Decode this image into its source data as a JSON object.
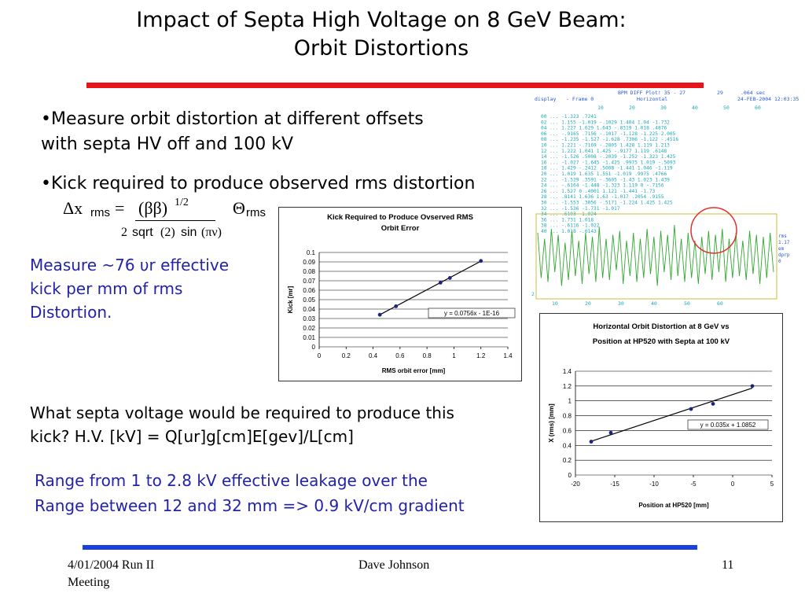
{
  "title": {
    "line1": "Impact of Septa High Voltage on 8 GeV Beam:",
    "line2": "Orbit Distortions"
  },
  "bullets": {
    "b1_line1": "•Measure orbit distortion at different offsets",
    "b1_line2": "with septa HV off and 100 kV",
    "b2": "•Kick required to produce observed rms distortion"
  },
  "formula": {
    "delta_x": "Δx",
    "rms_sub": "rms",
    "equals": "=",
    "beta": "(ββ)",
    "exponent": "1/2",
    "theta": "Θ",
    "theta_sub": "rms",
    "two": "2",
    "sqrt": "sqrt",
    "two_paren": "(2)",
    "sin": "sin",
    "pi_nu": "(πν)"
  },
  "measure_text": {
    "line1": "Measure ~76 υr effective",
    "line2": "kick per mm of rms",
    "line3": "Distortion."
  },
  "question": {
    "line1": "What septa voltage would be required to produce this",
    "line2": "kick?  H.V. [kV]  = Q[ur]g[cm]E[gev]/L[cm]"
  },
  "range_text": {
    "line1": "Range from 1 to 2.8 kV effective leakage over the",
    "line2": "Range between 12 and 32 mm => 0.9 kV/cm gradient"
  },
  "footer": {
    "date": "4/01/2004   Run II",
    "meeting": "Meeting",
    "author": "Dave Johnson",
    "page": "11"
  },
  "bpm_panel": {
    "header_title": "BPM DIFF Plot!  35 - 27",
    "header_num": "29",
    "header_time": ".064  sec",
    "display_label": "display",
    "frame_label": "- Frame 0",
    "horizontal_label": "Horizontal",
    "date": "24-FEB-2004 12:03:35",
    "top_ticks": [
      "10",
      "20",
      "30",
      "40",
      "50",
      "60"
    ],
    "bottom_ticks": [
      "10",
      "20",
      "30",
      "40",
      "50",
      "60"
    ],
    "right_labels": [
      "rms",
      "1.17",
      "em",
      "dprp",
      "0"
    ],
    "left_marker": "2",
    "table_rows": [
      "00  ...     -1.323                              .7241",
      "02  ...     1.155    -1.019   -.1029   1.404    1.04    -1.732",
      "04  ...     1.227    1.629    1.643    -.8319   1.018   .4876",
      "06  ...     -.9165   .7156    -.1017   -1.128   -1.225  2.005",
      "08  ...     -1.235   -1.527   -1.628   .7306    -1.122  -.4516",
      "10  ...     1.221    -.7169   -.2805   1.428    1.119   1.213",
      "12  ...     1.222    1.041    1.425    -.9177   1.119   .6148",
      "14  ...     -1.526   .5008    -.2039   -1.252   -1.323  1.425",
      "16  ...     -1.027   -1.645   -1.425   .9975    1.019   -.5093",
      "18  ...     1.429    -.2412   .5008    -1.441   1.046   -1.119",
      "20  ...     1.019    1.635    1.551    -1.019   .9975   .4766",
      "22  ...     -1.529   .3591    -.3605   -1.43    1.023   1.439",
      "24  ...     -.6164   -1.448   -1.323   1.119    0       -.7156",
      "26  ...     1.527    0        .4001    1.121    -1.441  -1.73",
      "28  ...     .8141    1.636    1.63     -1.017   .2054   .9155",
      "30  ...     -1.553   .3056    -.5171   -1.224   1.425   1.425",
      "32  ...                       -1.536   -1.731            -1.017",
      "34  ...                                .6103            -1.024",
      "36  ...                                1.731            1.018",
      "38  ...                                -.6116           -1.022",
      "40  ...                                1.018            -.0143"
    ]
  },
  "chart_data": [
    {
      "type": "scatter",
      "title": "Kick Required to Produce Ovserved RMS Orbit Error",
      "title_line1": "Kick Required to Produce Ovserved RMS",
      "title_line2": "Orbit Error",
      "xlabel": "RMS orbit error [mm]",
      "ylabel": "Kick [mr]",
      "xlim": [
        0,
        1.4
      ],
      "ylim": [
        0,
        0.1
      ],
      "x_ticks": [
        "0",
        "0.2",
        "0.4",
        "0.6",
        "0.8",
        "1",
        "1.2",
        "1.4"
      ],
      "y_ticks": [
        "0",
        "0.01",
        "0.02",
        "0.03",
        "0.04",
        "0.05",
        "0.06",
        "0.07",
        "0.08",
        "0.09",
        "0.1"
      ],
      "x": [
        0.45,
        0.57,
        0.9,
        0.97,
        1.2
      ],
      "y": [
        0.034,
        0.043,
        0.068,
        0.073,
        0.091
      ],
      "trendline": {
        "slope": 0.0756,
        "intercept": -1e-16
      },
      "equation_label": "y = 0.0756x - 1E-16",
      "grid": true,
      "marker_color": "#1a237e"
    },
    {
      "type": "scatter",
      "title": "Horizontal Orbit Distortion at 8 GeV vs Position at HP520 with Septa at 100 kV",
      "title_line1": "Horizontal Orbit Distortion at 8 GeV vs",
      "title_line2": "Position at HP520 with Septa at 100 kV",
      "xlabel": "Position at HP520 [mm]",
      "ylabel": "X (rms) [mm]",
      "xlim": [
        -20,
        5
      ],
      "ylim": [
        0,
        1.4
      ],
      "x_ticks": [
        "-20",
        "-15",
        "-10",
        "-5",
        "0",
        "5"
      ],
      "y_ticks": [
        "0",
        "0.2",
        "0.4",
        "0.6",
        "0.8",
        "1",
        "1.2",
        "1.4"
      ],
      "x": [
        -18,
        -15.5,
        -5.3,
        -2.5,
        2.5
      ],
      "y": [
        0.45,
        0.57,
        0.89,
        0.96,
        1.2
      ],
      "trendline": {
        "slope": 0.035,
        "intercept": 1.0852
      },
      "equation_label": "y = 0.035x + 1.0852",
      "grid": true,
      "marker_color": "#1a237e"
    },
    {
      "type": "line",
      "name": "bpm_difference_waveform",
      "xlim": [
        0,
        70
      ],
      "ylim": [
        -2,
        2
      ],
      "series_color": "#2ea82e",
      "highlight_circle": "red",
      "y": [
        1.2,
        -1.1,
        0.9,
        -1.3,
        1.4,
        -0.8,
        1.1,
        -1.5,
        0.7,
        -1.2,
        1.3,
        -1.0,
        0.8,
        -1.4,
        1.2,
        -0.9,
        1.0,
        -1.3,
        1.5,
        -1.1,
        0.9,
        -1.2,
        1.1,
        -0.7,
        1.3,
        -1.4,
        0.8,
        -1.0,
        1.2,
        -1.3,
        0.9,
        -1.1,
        1.4,
        -0.9,
        1.0,
        -1.5,
        1.3,
        -0.8,
        1.1,
        -1.2,
        1.6,
        -1.0,
        0.9,
        -1.3,
        1.2,
        -1.1,
        0.8,
        -1.4,
        1.0,
        -0.9,
        1.3,
        -1.2,
        1.1,
        -0.8,
        1.4,
        -1.3,
        0.9,
        -1.1,
        1.2,
        -1.0,
        0.8,
        -1.2,
        1.3,
        -0.9,
        1.1,
        -1.4,
        1.0,
        -1.1,
        1.2,
        -0.8
      ]
    }
  ]
}
